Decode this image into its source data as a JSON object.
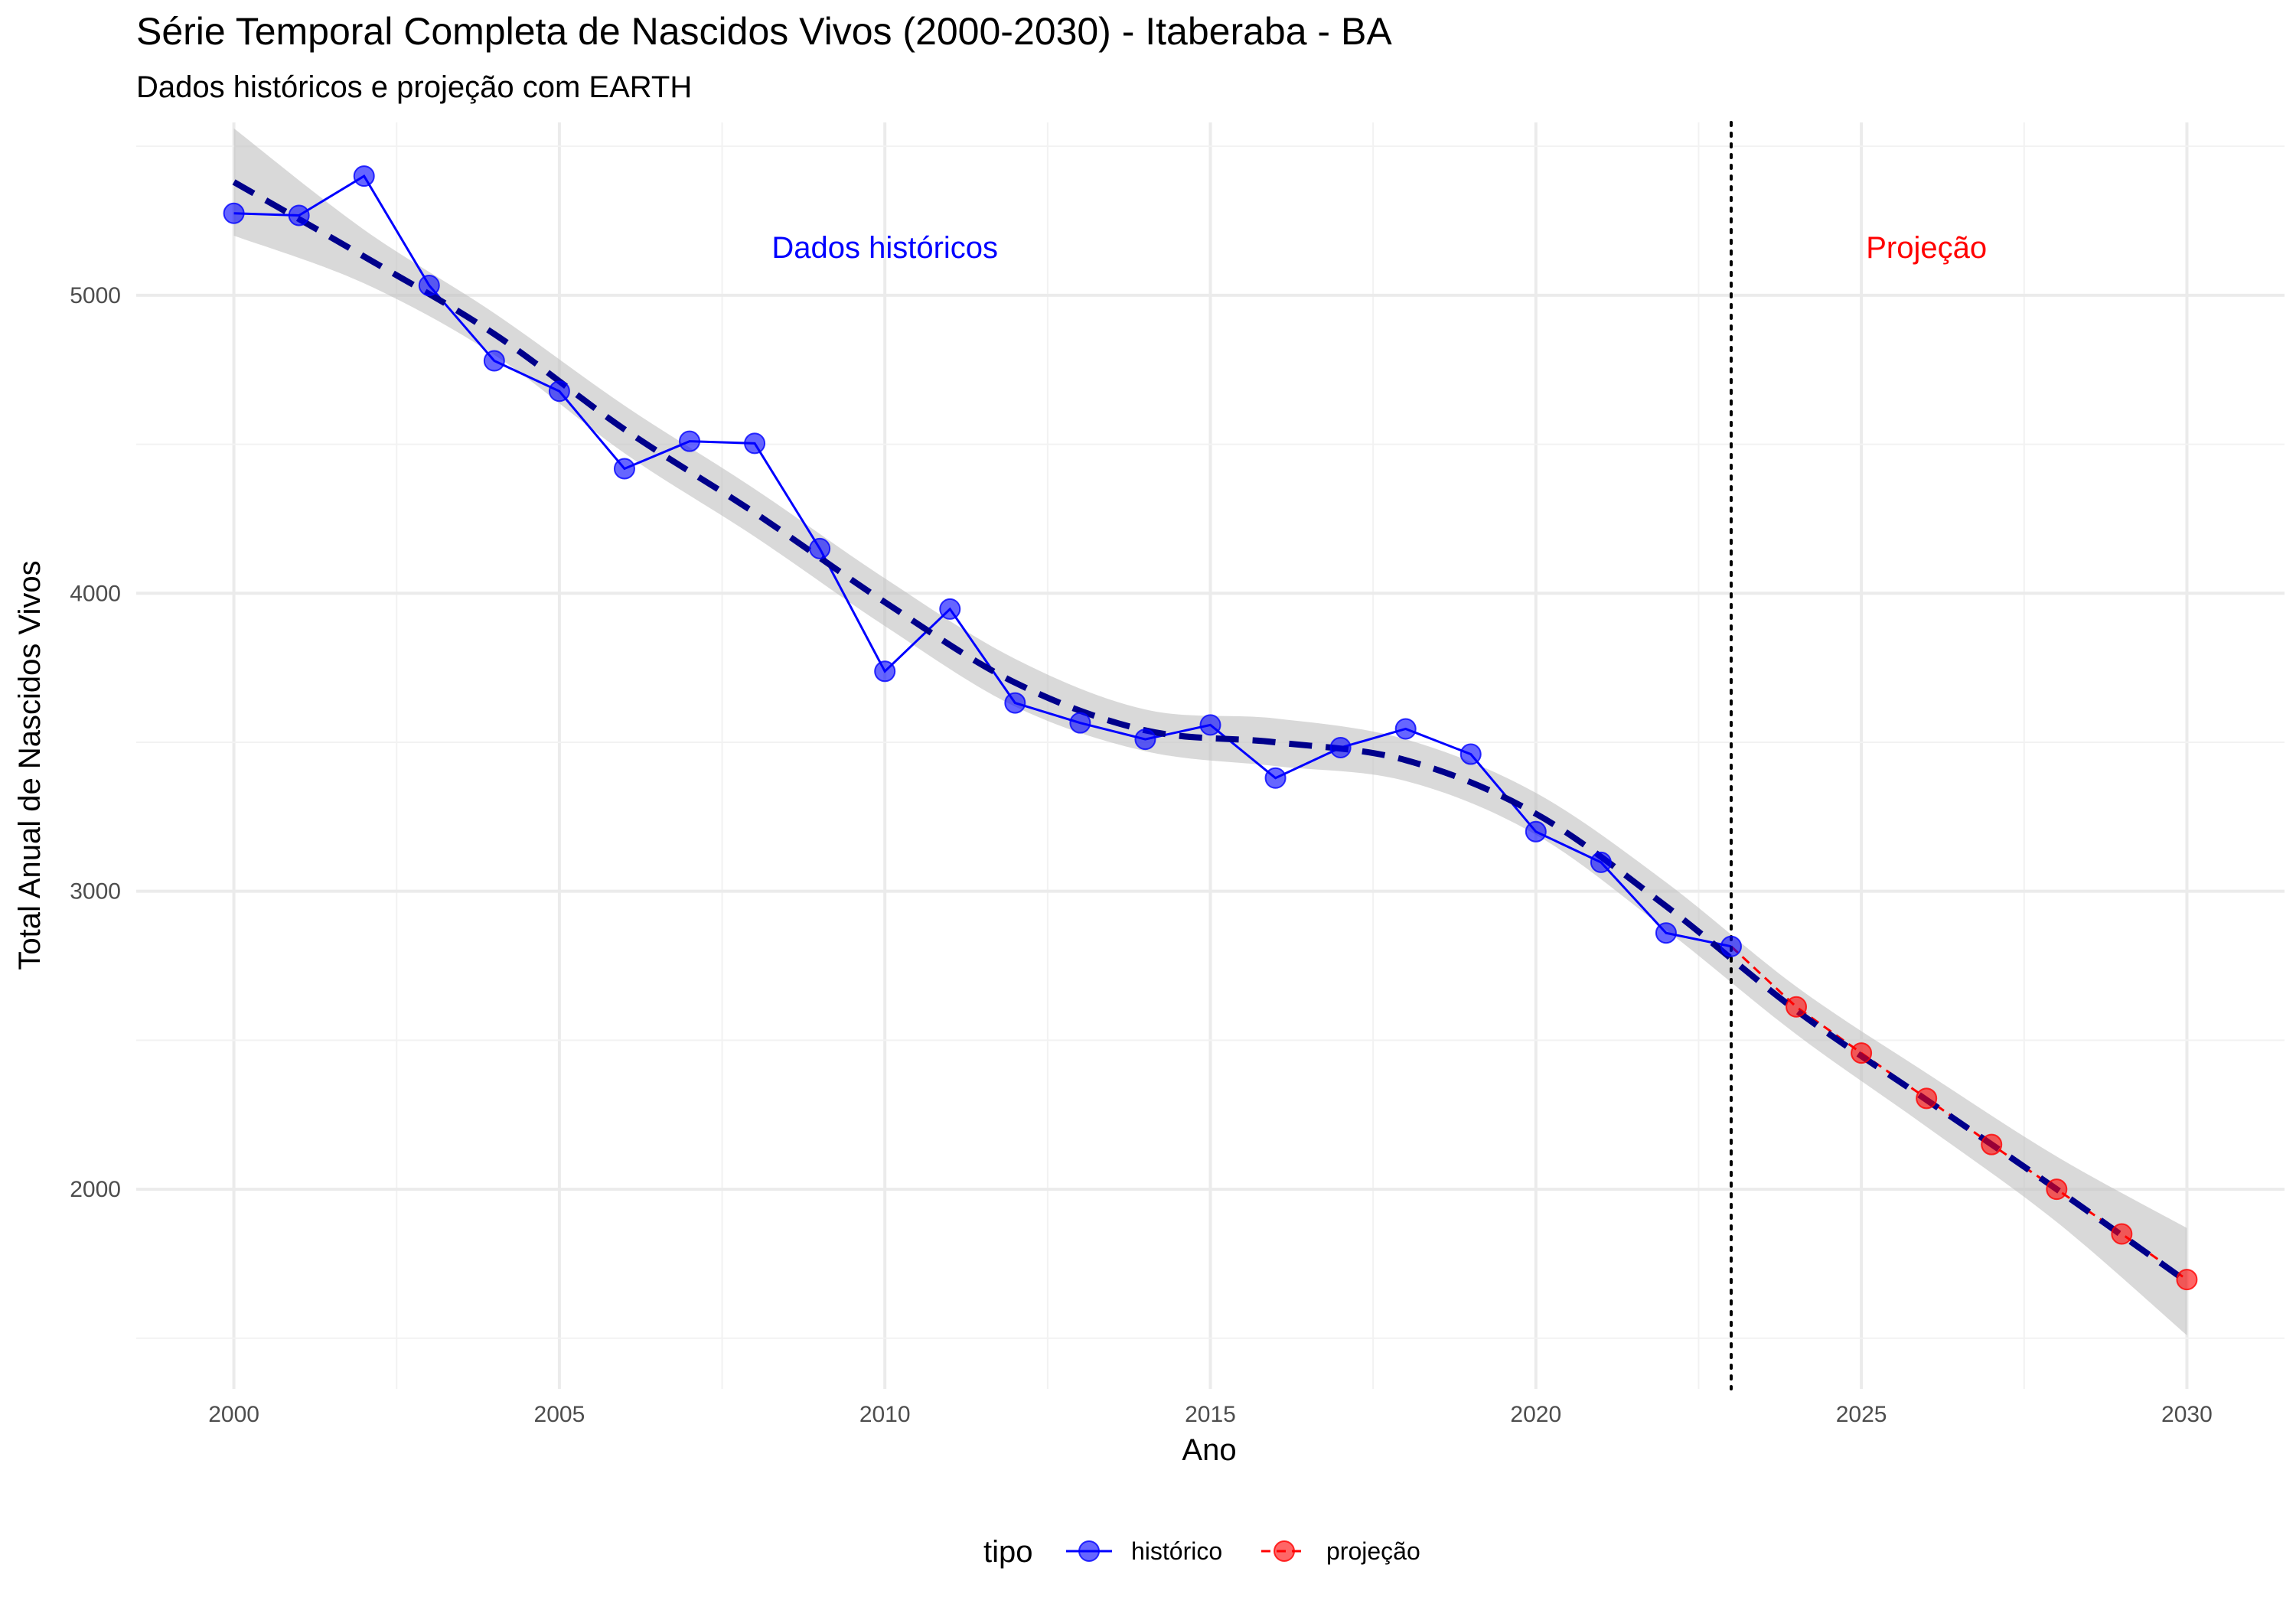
{
  "chart_data": {
    "type": "line",
    "title": "Série Temporal Completa de Nascidos Vivos (2000-2030) -  Itaberaba - BA",
    "subtitle": "Dados históricos e projeção com EARTH",
    "xlabel": "Ano",
    "ylabel": "Total Anual de Nascidos Vivos",
    "xlim": [
      1998.5,
      2031.5
    ],
    "ylim": [
      1330,
      5580
    ],
    "x_ticks": [
      2000,
      2005,
      2010,
      2015,
      2020,
      2025,
      2030
    ],
    "y_ticks": [
      2000,
      3000,
      4000,
      5000
    ],
    "grid": true,
    "legend": {
      "title": "tipo",
      "position": "bottom",
      "entries": [
        {
          "label": "histórico",
          "color": "#0000ff"
        },
        {
          "label": "projeção",
          "color": "#ff0000"
        }
      ]
    },
    "series": [
      {
        "name": "histórico",
        "color": "#0000ff",
        "line": "solid",
        "x": [
          2000,
          2001,
          2002,
          2003,
          2004,
          2005,
          2006,
          2007,
          2008,
          2009,
          2010,
          2011,
          2012,
          2013,
          2014,
          2015,
          2016,
          2017,
          2018,
          2019,
          2020,
          2021,
          2022,
          2023
        ],
        "y": [
          5275,
          5268,
          5400,
          5033,
          4780,
          4678,
          4418,
          4510,
          4503,
          4150,
          3738,
          3947,
          3632,
          3565,
          3510,
          3558,
          3380,
          3482,
          3545,
          3460,
          3200,
          3097,
          2860,
          2815
        ]
      },
      {
        "name": "projeção",
        "color": "#ff0000",
        "line": "dashed",
        "x": [
          2023,
          2024,
          2025,
          2026,
          2027,
          2028,
          2029,
          2030
        ],
        "y": [
          2815,
          2612,
          2457,
          2305,
          2150,
          2000,
          1850,
          1697
        ]
      }
    ],
    "trend": {
      "color": "#00008b",
      "band_color": "#bfbfbf",
      "x": [
        2000,
        2002,
        2004,
        2006,
        2008,
        2010,
        2012,
        2014,
        2016,
        2018,
        2020,
        2022,
        2024,
        2026,
        2028,
        2030
      ],
      "y": [
        5380,
        5130,
        4870,
        4550,
        4270,
        3970,
        3700,
        3540,
        3500,
        3440,
        3260,
        2950,
        2600,
        2300,
        2000,
        1690
      ],
      "band_half_width": [
        180,
        90,
        70,
        80,
        80,
        80,
        80,
        70,
        80,
        70,
        70,
        80,
        80,
        90,
        110,
        180
      ]
    },
    "cutoff": {
      "x": 2023,
      "style": "dotted",
      "color": "#000000"
    },
    "annotations": [
      {
        "text": "Dados históricos",
        "x": 2010,
        "y": 5125,
        "color": "#0000ff"
      },
      {
        "text": "Projeção",
        "x": 2026,
        "y": 5125,
        "color": "#ff0000"
      }
    ]
  }
}
